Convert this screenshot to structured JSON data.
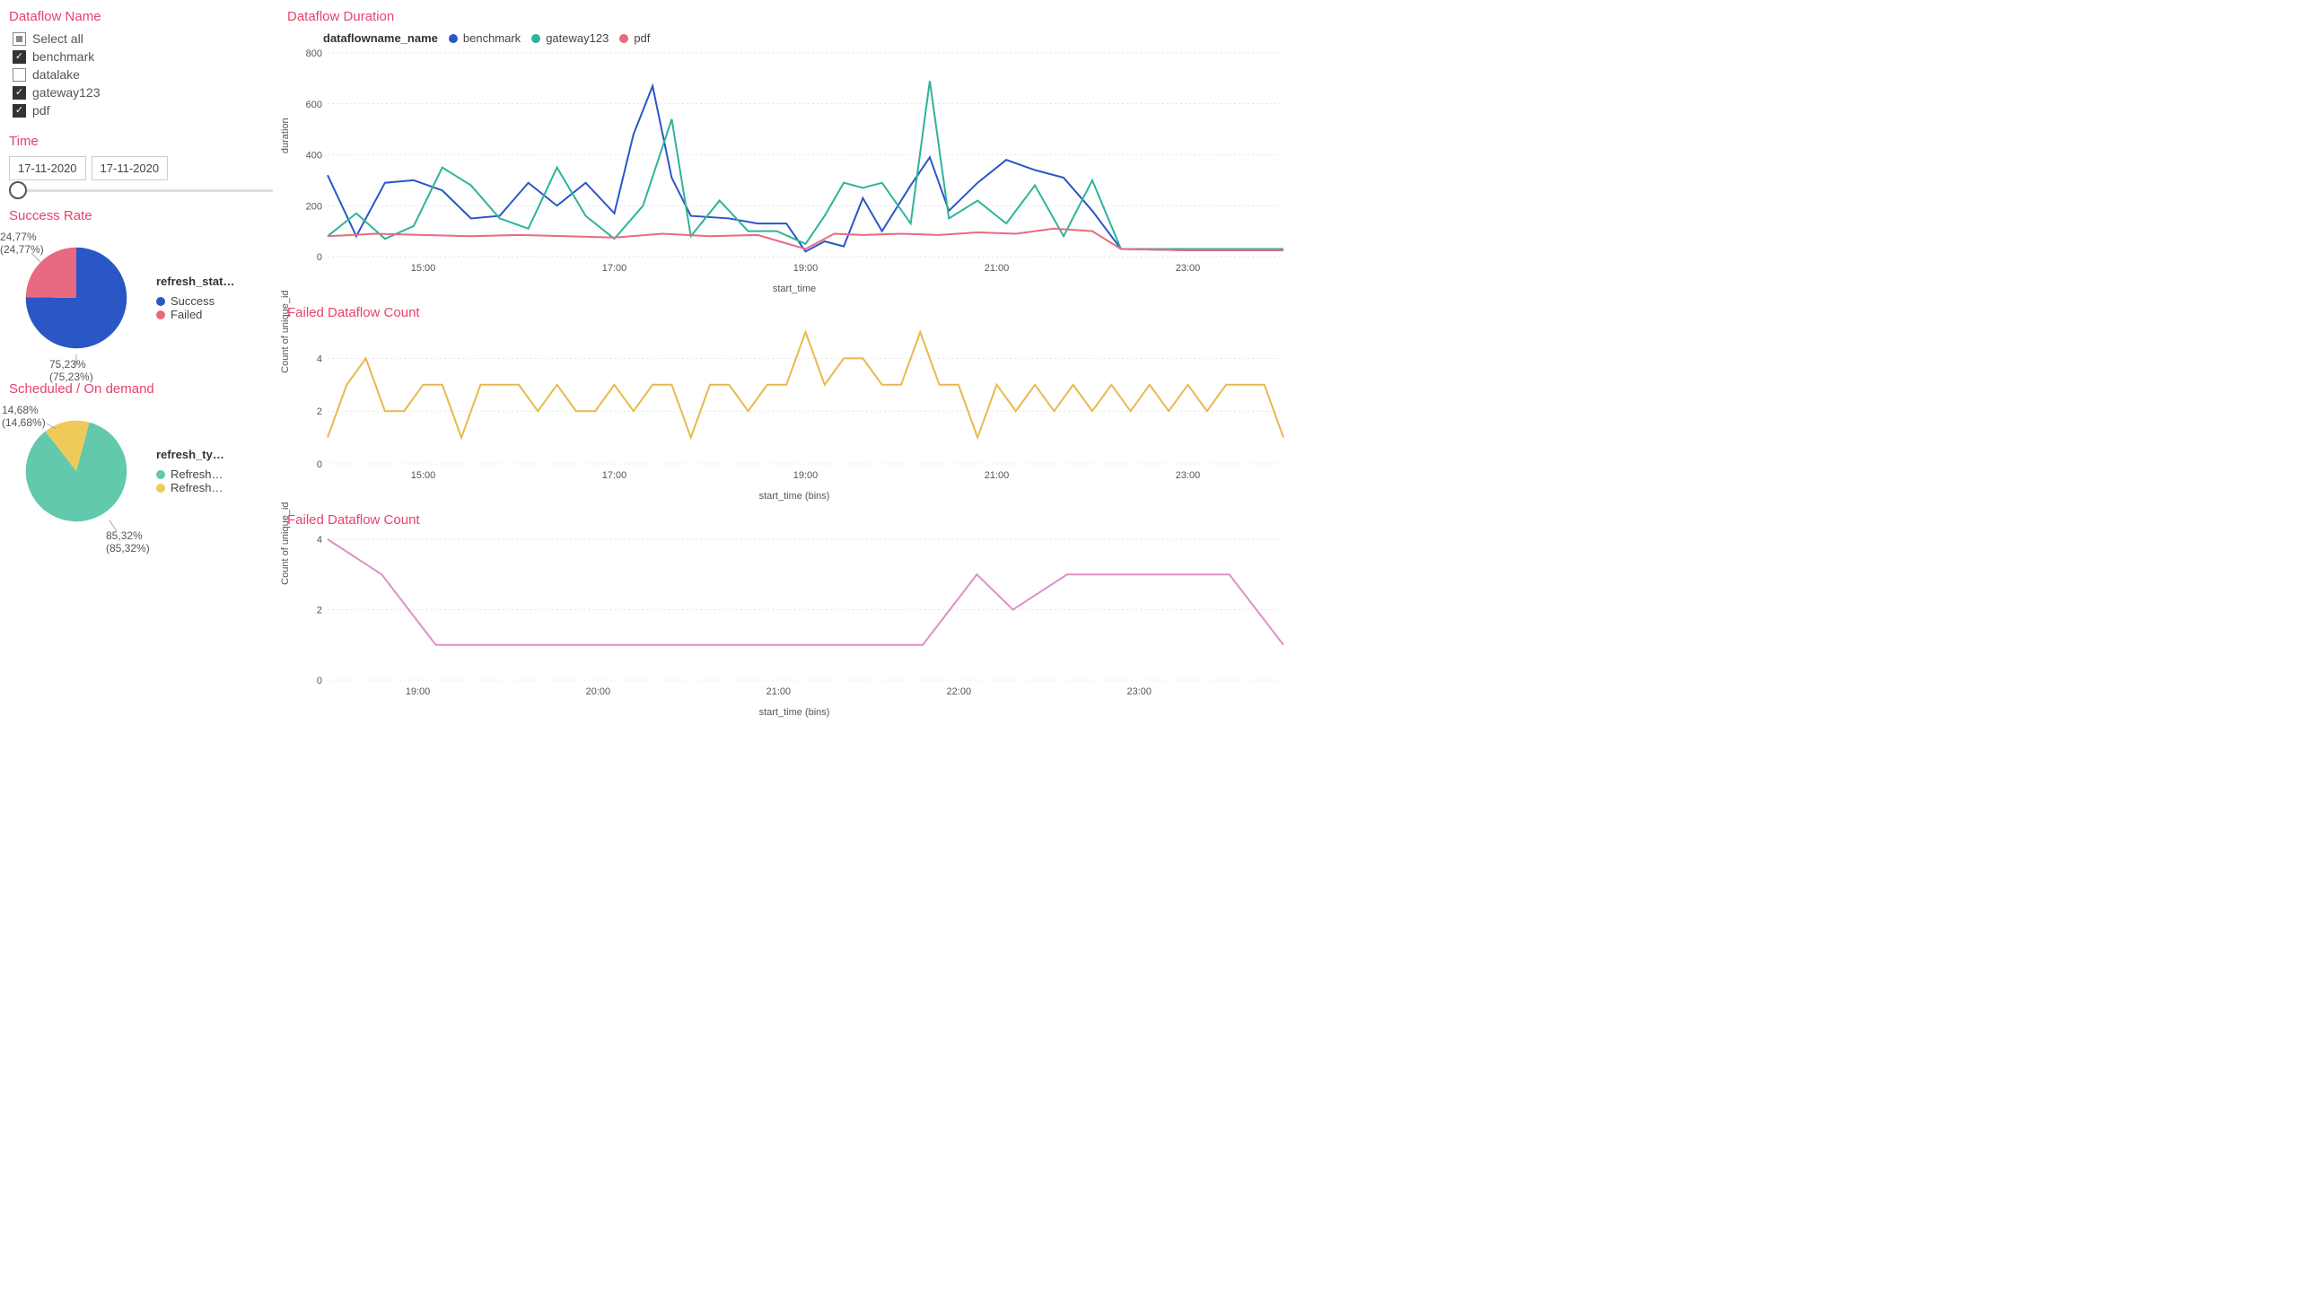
{
  "colors": {
    "accent": "#e8426b",
    "benchmark": "#2a56c6",
    "gateway": "#2eb39a",
    "pdf": "#e86a80",
    "success": "#2a56c6",
    "failed_pie": "#e86a80",
    "refresh_teal": "#62c9ac",
    "refresh_yellow": "#f0c95b",
    "failed_line": "#e8b94b",
    "failed_line2": "#e08fc7",
    "grid": "#cccccc",
    "bg": "#ffffff"
  },
  "filters": {
    "title": "Dataflow Name",
    "items": [
      {
        "label": "Select all",
        "state": "partial"
      },
      {
        "label": "benchmark",
        "state": "checked"
      },
      {
        "label": "datalake",
        "state": "unchecked"
      },
      {
        "label": "gateway123",
        "state": "checked"
      },
      {
        "label": "pdf",
        "state": "checked"
      }
    ]
  },
  "time": {
    "title": "Time",
    "start": "17-11-2020",
    "end": "17-11-2020"
  },
  "successRate": {
    "title": "Success Rate",
    "legendTitle": "refresh_stat…",
    "slices": [
      {
        "label": "Success",
        "value": 75.23,
        "display": "75,23%",
        "sub": "(75,23%)",
        "colorKey": "success"
      },
      {
        "label": "Failed",
        "value": 24.77,
        "display": "24,77%",
        "sub": "(24,77%)",
        "colorKey": "failed_pie"
      }
    ]
  },
  "scheduled": {
    "title": "Scheduled / On demand",
    "legendTitle": "refresh_ty…",
    "slices": [
      {
        "label": "Refresh…",
        "value": 85.32,
        "display": "85,32%",
        "sub": "(85,32%)",
        "colorKey": "refresh_teal"
      },
      {
        "label": "Refresh…",
        "value": 14.68,
        "display": "14,68%",
        "sub": "(14,68%)",
        "colorKey": "refresh_yellow"
      }
    ]
  },
  "durationChart": {
    "title": "Dataflow Duration",
    "legendLabel": "dataflowname_name",
    "yLabel": "duration",
    "xLabel": "start_time",
    "yMin": 0,
    "yMax": 800,
    "yStep": 200,
    "xMin": 14,
    "xMax": 24,
    "xTicks": [
      15,
      17,
      19,
      21,
      23
    ],
    "series": [
      {
        "name": "benchmark",
        "colorKey": "benchmark",
        "points": [
          [
            14.0,
            320
          ],
          [
            14.3,
            80
          ],
          [
            14.6,
            290
          ],
          [
            14.9,
            300
          ],
          [
            15.2,
            260
          ],
          [
            15.5,
            150
          ],
          [
            15.8,
            160
          ],
          [
            16.1,
            290
          ],
          [
            16.4,
            200
          ],
          [
            16.7,
            290
          ],
          [
            17.0,
            170
          ],
          [
            17.2,
            480
          ],
          [
            17.4,
            670
          ],
          [
            17.6,
            310
          ],
          [
            17.8,
            160
          ],
          [
            18.2,
            150
          ],
          [
            18.5,
            130
          ],
          [
            18.8,
            130
          ],
          [
            19.0,
            20
          ],
          [
            19.2,
            60
          ],
          [
            19.4,
            40
          ],
          [
            19.6,
            230
          ],
          [
            19.8,
            100
          ],
          [
            20.1,
            280
          ],
          [
            20.3,
            390
          ],
          [
            20.5,
            180
          ],
          [
            20.8,
            290
          ],
          [
            21.1,
            380
          ],
          [
            21.4,
            340
          ],
          [
            21.7,
            310
          ],
          [
            22.0,
            180
          ],
          [
            22.3,
            30
          ],
          [
            23.0,
            25
          ],
          [
            23.5,
            25
          ],
          [
            24.0,
            25
          ]
        ]
      },
      {
        "name": "gateway123",
        "colorKey": "gateway",
        "points": [
          [
            14.0,
            80
          ],
          [
            14.3,
            170
          ],
          [
            14.6,
            70
          ],
          [
            14.9,
            120
          ],
          [
            15.2,
            350
          ],
          [
            15.5,
            280
          ],
          [
            15.8,
            150
          ],
          [
            16.1,
            110
          ],
          [
            16.4,
            350
          ],
          [
            16.7,
            160
          ],
          [
            17.0,
            70
          ],
          [
            17.3,
            200
          ],
          [
            17.6,
            540
          ],
          [
            17.8,
            80
          ],
          [
            18.1,
            220
          ],
          [
            18.4,
            100
          ],
          [
            18.7,
            100
          ],
          [
            19.0,
            50
          ],
          [
            19.2,
            160
          ],
          [
            19.4,
            290
          ],
          [
            19.6,
            270
          ],
          [
            19.8,
            290
          ],
          [
            20.1,
            130
          ],
          [
            20.3,
            690
          ],
          [
            20.5,
            150
          ],
          [
            20.8,
            220
          ],
          [
            21.1,
            130
          ],
          [
            21.4,
            280
          ],
          [
            21.7,
            80
          ],
          [
            22.0,
            300
          ],
          [
            22.3,
            30
          ],
          [
            23.0,
            30
          ],
          [
            23.5,
            30
          ],
          [
            24.0,
            30
          ]
        ]
      },
      {
        "name": "pdf",
        "colorKey": "pdf",
        "points": [
          [
            14.0,
            80
          ],
          [
            14.5,
            90
          ],
          [
            15.0,
            85
          ],
          [
            15.5,
            80
          ],
          [
            16.0,
            85
          ],
          [
            16.5,
            80
          ],
          [
            17.0,
            75
          ],
          [
            17.5,
            90
          ],
          [
            18.0,
            80
          ],
          [
            18.5,
            85
          ],
          [
            19.0,
            30
          ],
          [
            19.3,
            90
          ],
          [
            19.6,
            85
          ],
          [
            20.0,
            90
          ],
          [
            20.4,
            85
          ],
          [
            20.8,
            95
          ],
          [
            21.2,
            90
          ],
          [
            21.6,
            110
          ],
          [
            22.0,
            100
          ],
          [
            22.3,
            30
          ],
          [
            23.0,
            25
          ],
          [
            23.5,
            25
          ],
          [
            24.0,
            25
          ]
        ]
      }
    ]
  },
  "failedCount1": {
    "title": "Failed Dataflow Count",
    "yLabel": "Count of unique_id",
    "xLabel": "start_time (bins)",
    "yMin": 0,
    "yMax": 5,
    "yStep": 2,
    "yTicks": [
      0,
      2,
      4
    ],
    "xMin": 14,
    "xMax": 24,
    "xTicks": [
      15,
      17,
      19,
      21,
      23
    ],
    "colorKey": "failed_line",
    "points": [
      [
        14.0,
        1
      ],
      [
        14.2,
        3
      ],
      [
        14.4,
        4
      ],
      [
        14.6,
        2
      ],
      [
        14.8,
        2
      ],
      [
        15.0,
        3
      ],
      [
        15.2,
        3
      ],
      [
        15.4,
        1
      ],
      [
        15.6,
        3
      ],
      [
        15.8,
        3
      ],
      [
        16.0,
        3
      ],
      [
        16.2,
        2
      ],
      [
        16.4,
        3
      ],
      [
        16.6,
        2
      ],
      [
        16.8,
        2
      ],
      [
        17.0,
        3
      ],
      [
        17.2,
        2
      ],
      [
        17.4,
        3
      ],
      [
        17.6,
        3
      ],
      [
        17.8,
        1
      ],
      [
        18.0,
        3
      ],
      [
        18.2,
        3
      ],
      [
        18.4,
        2
      ],
      [
        18.6,
        3
      ],
      [
        18.8,
        3
      ],
      [
        19.0,
        5
      ],
      [
        19.2,
        3
      ],
      [
        19.4,
        4
      ],
      [
        19.6,
        4
      ],
      [
        19.8,
        3
      ],
      [
        20.0,
        3
      ],
      [
        20.2,
        5
      ],
      [
        20.4,
        3
      ],
      [
        20.6,
        3
      ],
      [
        20.8,
        1
      ],
      [
        21.0,
        3
      ],
      [
        21.2,
        2
      ],
      [
        21.4,
        3
      ],
      [
        21.6,
        2
      ],
      [
        21.8,
        3
      ],
      [
        22.0,
        2
      ],
      [
        22.2,
        3
      ],
      [
        22.4,
        2
      ],
      [
        22.6,
        3
      ],
      [
        22.8,
        2
      ],
      [
        23.0,
        3
      ],
      [
        23.2,
        2
      ],
      [
        23.4,
        3
      ],
      [
        23.6,
        3
      ],
      [
        23.8,
        3
      ],
      [
        24.0,
        1
      ]
    ]
  },
  "failedCount2": {
    "title": "Failed Dataflow Count",
    "yLabel": "Count of unique_id",
    "xLabel": "start_time (bins)",
    "yMin": 0,
    "yMax": 4,
    "yStep": 2,
    "yTicks": [
      0,
      2,
      4
    ],
    "xMin": 18.5,
    "xMax": 23.8,
    "xTicks": [
      19,
      20,
      21,
      22,
      23
    ],
    "colorKey": "failed_line2",
    "points": [
      [
        18.5,
        4
      ],
      [
        18.8,
        3
      ],
      [
        19.1,
        1
      ],
      [
        19.4,
        1
      ],
      [
        19.7,
        1
      ],
      [
        20.0,
        1
      ],
      [
        20.3,
        1
      ],
      [
        20.6,
        1
      ],
      [
        20.9,
        1
      ],
      [
        21.2,
        1
      ],
      [
        21.5,
        1
      ],
      [
        21.8,
        1
      ],
      [
        22.1,
        3
      ],
      [
        22.3,
        2
      ],
      [
        22.6,
        3
      ],
      [
        22.9,
        3
      ],
      [
        23.2,
        3
      ],
      [
        23.5,
        3
      ],
      [
        23.8,
        1
      ]
    ]
  }
}
